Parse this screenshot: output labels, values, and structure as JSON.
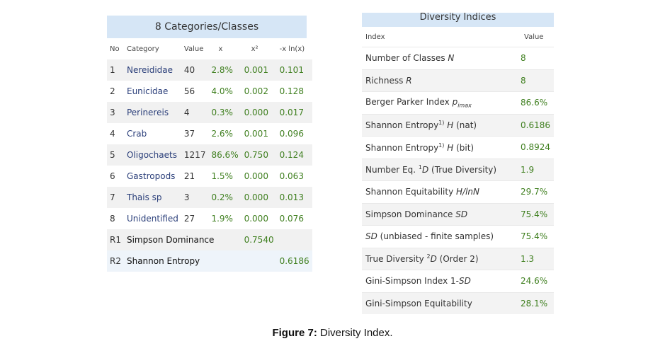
{
  "left_table": {
    "title": "8 Categories/Classes",
    "headers": {
      "no": "No",
      "category": "Category",
      "value": "Value",
      "x": "x",
      "x2": "x²",
      "xlnx": "-x ln(x)"
    },
    "rows": [
      {
        "no": "1",
        "category": "Nereididae",
        "value": "40",
        "x": "2.8%",
        "x2": "0.001",
        "xlnx": "0.101"
      },
      {
        "no": "2",
        "category": "Eunicidae",
        "value": "56",
        "x": "4.0%",
        "x2": "0.002",
        "xlnx": "0.128"
      },
      {
        "no": "3",
        "category": "Perinereis",
        "value": "4",
        "x": "0.3%",
        "x2": "0.000",
        "xlnx": "0.017"
      },
      {
        "no": "4",
        "category": "Crab",
        "value": "37",
        "x": "2.6%",
        "x2": "0.001",
        "xlnx": "0.096"
      },
      {
        "no": "5",
        "category": "Oligochaets",
        "value": "1217",
        "x": "86.6%",
        "x2": "0.750",
        "xlnx": "0.124"
      },
      {
        "no": "6",
        "category": "Gastropods",
        "value": "21",
        "x": "1.5%",
        "x2": "0.000",
        "xlnx": "0.063"
      },
      {
        "no": "7",
        "category": "Thais sp",
        "value": "3",
        "x": "0.2%",
        "x2": "0.000",
        "xlnx": "0.013"
      },
      {
        "no": "8",
        "category": "Unidentified",
        "value": "27",
        "x": "1.9%",
        "x2": "0.000",
        "xlnx": "0.076"
      }
    ],
    "r1": {
      "no": "R1",
      "label": "Simpson Dominance",
      "value": "0.7540"
    },
    "r2": {
      "no": "R2",
      "label": "Shannon Entropy",
      "value": "0.6186"
    }
  },
  "right_table": {
    "title": "Diversity Indices",
    "headers": {
      "index": "Index",
      "value": "Value"
    },
    "rows": [
      {
        "label": "Number of Classes N",
        "value": "8"
      },
      {
        "label": "Richness R",
        "value": "8"
      },
      {
        "label": "Berger Parker Index pimax",
        "value": "86.6%"
      },
      {
        "label": "Shannon Entropy1) H (nat)",
        "value": "0.6186"
      },
      {
        "label": "Shannon Entropy1) H (bit)",
        "value": "0.8924"
      },
      {
        "label": "Number Eq. 1D (True Diversity)",
        "value": "1.9"
      },
      {
        "label": "Shannon Equitability H/lnN",
        "value": "29.7%"
      },
      {
        "label": "Simpson Dominance SD",
        "value": "75.4%"
      },
      {
        "label": "SD (unbiased - finite samples)",
        "value": "75.4%"
      },
      {
        "label": "True Diversity 2D (Order 2)",
        "value": "1.3"
      },
      {
        "label": "Gini-Simpson Index 1-SD",
        "value": "24.6%"
      },
      {
        "label": "Gini-Simpson Equitability",
        "value": "28.1%"
      }
    ]
  },
  "caption": {
    "label": "Figure 7:",
    "text": " Diversity Index."
  }
}
